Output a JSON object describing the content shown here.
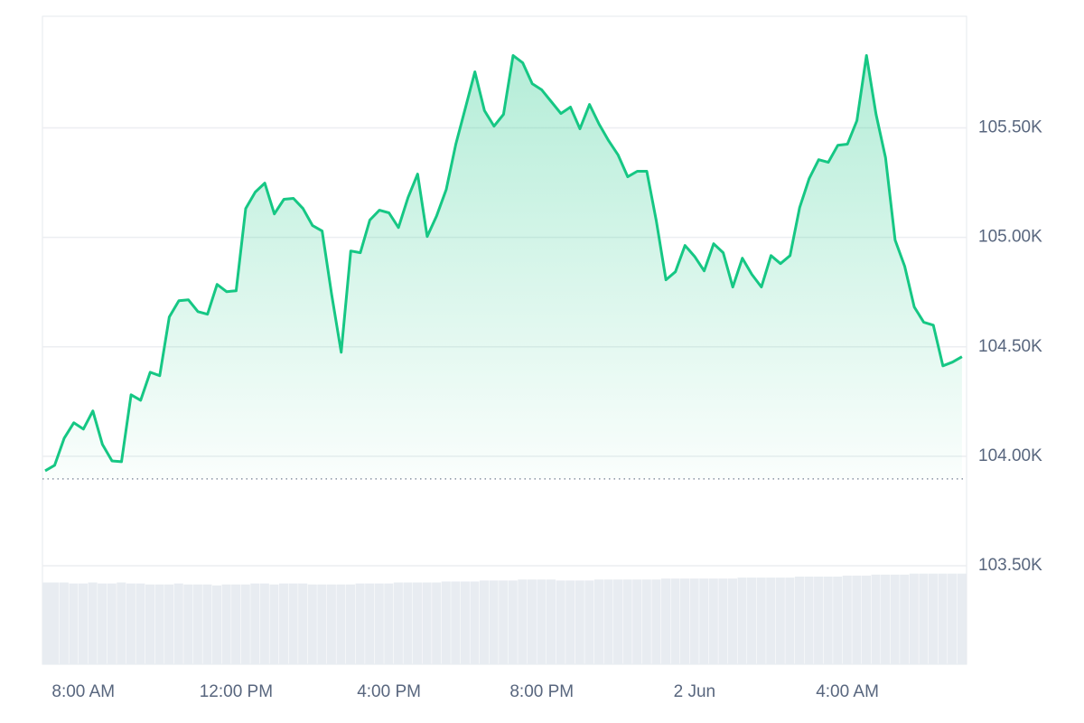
{
  "chart_data": {
    "type": "line",
    "x": [
      7,
      7.25,
      7.5,
      7.75,
      8,
      8.25,
      8.5,
      8.75,
      9,
      9.25,
      9.5,
      9.75,
      10,
      10.25,
      10.5,
      10.75,
      11,
      11.25,
      11.5,
      11.75,
      12,
      12.25,
      12.5,
      12.75,
      13,
      13.25,
      13.5,
      13.75,
      14,
      14.25,
      14.5,
      14.75,
      15,
      15.25,
      15.5,
      15.75,
      16,
      16.25,
      16.5,
      16.75,
      17,
      17.25,
      17.5,
      17.75,
      18,
      18.25,
      18.5,
      18.75,
      19,
      19.25,
      19.5,
      19.75,
      20,
      20.25,
      20.5,
      20.75,
      21,
      21.25,
      21.5,
      21.75,
      22,
      22.25,
      22.5,
      22.75,
      23,
      23.25,
      23.5,
      23.75,
      24,
      24.25,
      24.5,
      24.75,
      25,
      25.25,
      25.5,
      25.75,
      26,
      26.25,
      26.5,
      26.75,
      27,
      27.25,
      27.5,
      27.75,
      28,
      28.25,
      28.5,
      28.75,
      29,
      29.25,
      29.5,
      29.75,
      30,
      30.25,
      30.5,
      30.75,
      31
    ],
    "values": [
      103934,
      103959,
      104083,
      104153,
      104124,
      104207,
      104054,
      103979,
      103975,
      104281,
      104256,
      104384,
      104368,
      104636,
      104711,
      104715,
      104661,
      104649,
      104785,
      104752,
      104756,
      105132,
      105207,
      105248,
      105107,
      105174,
      105178,
      105132,
      105054,
      105029,
      104740,
      104475,
      104938,
      104930,
      105079,
      105124,
      105112,
      105045,
      105182,
      105289,
      105004,
      105099,
      105219,
      105426,
      105591,
      105756,
      105579,
      105508,
      105562,
      105831,
      105798,
      105702,
      105674,
      105620,
      105566,
      105595,
      105496,
      105607,
      105517,
      105442,
      105376,
      105277,
      105302,
      105302,
      105074,
      104806,
      104843,
      104963,
      104913,
      104847,
      104971,
      104930,
      104773,
      104905,
      104831,
      104773,
      104917,
      104880,
      104917,
      105136,
      105269,
      105355,
      105343,
      105421,
      105426,
      105533,
      105831,
      105562,
      105364,
      104988,
      104868,
      104682,
      104612,
      104599,
      104413,
      104430,
      104455
    ],
    "volume": [
      83,
      83,
      83,
      82,
      82,
      83,
      82,
      82,
      83,
      82,
      82,
      81,
      81,
      81,
      82,
      81,
      81,
      81,
      80,
      81,
      81,
      81,
      82,
      82,
      81,
      82,
      82,
      82,
      81,
      81,
      81,
      81,
      81,
      82,
      82,
      82,
      82,
      83,
      83,
      83,
      83,
      83,
      84,
      84,
      84,
      84,
      85,
      85,
      85,
      85,
      86,
      86,
      86,
      86,
      85,
      85,
      85,
      85,
      86,
      86,
      86,
      86,
      86,
      86,
      86,
      87,
      87,
      87,
      87,
      87,
      87,
      87,
      87,
      88,
      88,
      88,
      88,
      88,
      88,
      89,
      89,
      89,
      89,
      89,
      90,
      90,
      90,
      91,
      91,
      91,
      91,
      92,
      92,
      92,
      92,
      92,
      92
    ],
    "volume_lim": [
      0,
      100
    ],
    "color": "#16c784",
    "volume_color": "#e8ecf1",
    "reference_line": 103897,
    "xlim": [
      6.93,
      31.12
    ],
    "xticks": [
      {
        "value": 8,
        "label": "8:00 AM"
      },
      {
        "value": 12,
        "label": "12:00 PM"
      },
      {
        "value": 16,
        "label": "4:00 PM"
      },
      {
        "value": 20,
        "label": "8:00 PM"
      },
      {
        "value": 24,
        "label": "2 Jun"
      },
      {
        "value": 28,
        "label": "4:00 AM"
      }
    ],
    "ylim": [
      103050,
      106010
    ],
    "yticks": [
      {
        "value": 103500,
        "label": "103.50K"
      },
      {
        "value": 104000,
        "label": "104.00K"
      },
      {
        "value": 104500,
        "label": "104.50K"
      },
      {
        "value": 105000,
        "label": "105.00K"
      },
      {
        "value": 105500,
        "label": "105.50K"
      }
    ],
    "grid": true
  }
}
